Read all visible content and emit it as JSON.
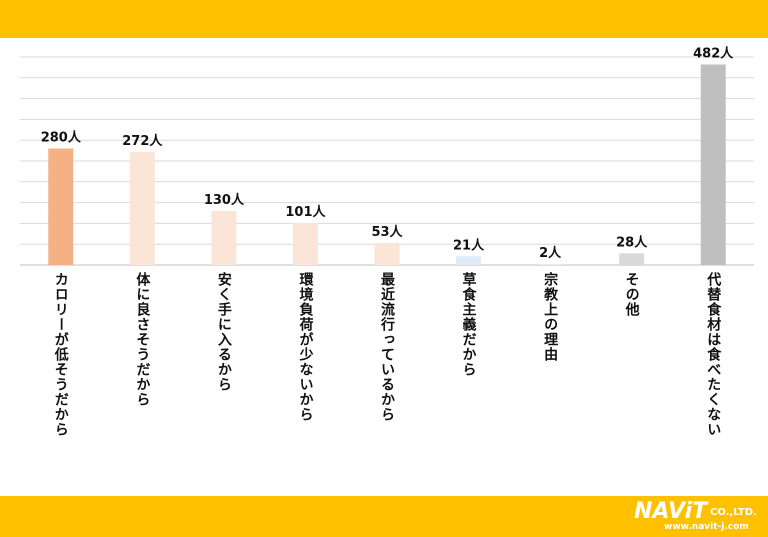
{
  "chart_data": {
    "type": "bar",
    "categories": [
      "カロリーが低そうだから",
      "体に良さそうだから",
      "安く手に入るから",
      "環境負荷が少ないから",
      "最近流行っているから",
      "草食主義だから",
      "宗教上の理由",
      "その他",
      "代替食材は食べたくない"
    ],
    "values": [
      280,
      272,
      130,
      101,
      53,
      21,
      2,
      28,
      482
    ],
    "data_labels": [
      "280人",
      "272人",
      "130人",
      "101人",
      "53人",
      "21人",
      "2人",
      "28人",
      "482人"
    ],
    "colors": [
      "#F4B183",
      "#FBE5D6",
      "#FBE5D6",
      "#FBE5D6",
      "#FBE5D6",
      "#DEEBF7",
      "#DEEBF7",
      "#D9D9D9",
      "#BFBFBF"
    ],
    "ylim": [
      0,
      500
    ],
    "grid": true,
    "title": "",
    "xlabel": "",
    "ylabel": ""
  },
  "brand": {
    "logo_text": "NAViT",
    "logo_suffix": "CO.,LTD.",
    "url": "www.navit-j.com",
    "band_color": "#FFC000"
  }
}
